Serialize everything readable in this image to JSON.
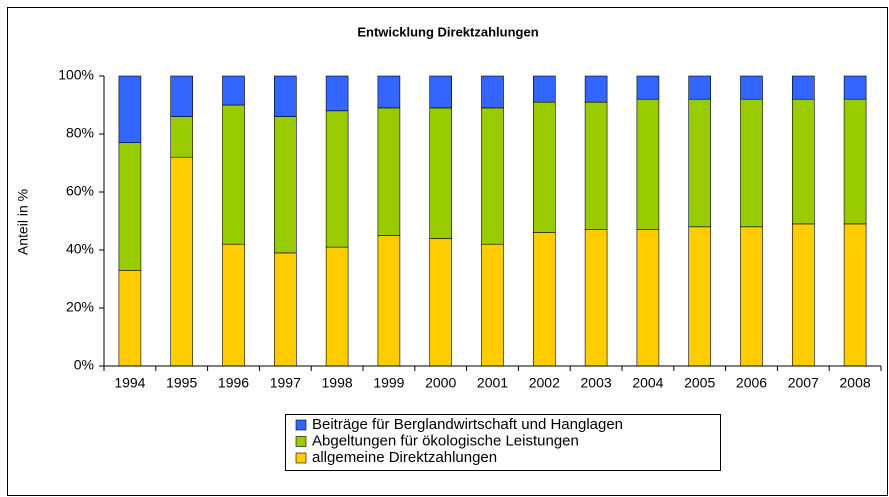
{
  "chart_data": {
    "type": "bar",
    "stacked": true,
    "title": "Entwicklung Direktzahlungen",
    "y_label": "Anteil in %",
    "categories": [
      "1994",
      "1995",
      "1996",
      "1997",
      "1998",
      "1999",
      "2000",
      "2001",
      "2002",
      "2003",
      "2004",
      "2005",
      "2006",
      "2007",
      "2008"
    ],
    "series": [
      {
        "name": "Beiträge für Berglandwirtschaft und Hanglagen",
        "color": "#3366ff",
        "values": [
          23,
          14,
          10,
          14,
          12,
          11,
          11,
          11,
          9,
          9,
          8,
          8,
          8,
          8,
          8
        ]
      },
      {
        "name": "Abgeltungen für ökologische Leistungen",
        "color": "#99cc00",
        "values": [
          44,
          14,
          48,
          47,
          47,
          44,
          45,
          47,
          45,
          44,
          45,
          44,
          44,
          43,
          43
        ]
      },
      {
        "name": "allgemeine Direktzahlungen",
        "color": "#ffcc00",
        "values": [
          33,
          72,
          42,
          39,
          41,
          45,
          44,
          42,
          46,
          47,
          47,
          48,
          48,
          49,
          49
        ]
      }
    ],
    "ylim": [
      0,
      100
    ],
    "yticks": [
      {
        "value": 0,
        "label": "0%"
      },
      {
        "value": 20,
        "label": "20%"
      },
      {
        "value": 40,
        "label": "40%"
      },
      {
        "value": 60,
        "label": "60%"
      },
      {
        "value": 80,
        "label": "80%"
      },
      {
        "value": 100,
        "label": "100%"
      }
    ],
    "grid": false,
    "legend": "bottom"
  }
}
